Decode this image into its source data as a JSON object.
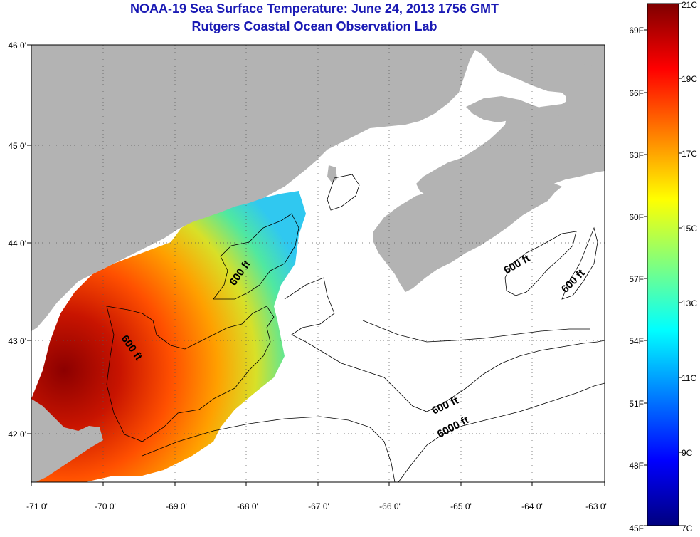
{
  "title_line1": "NOAA-19 Sea Surface Temperature:  June 24, 2013 1756 GMT",
  "title_line2": "Rutgers Coastal Ocean Observation Lab",
  "map": {
    "lat_labels": [
      "46 0'",
      "45 0'",
      "44 0'",
      "43 0'",
      "42 0'"
    ],
    "lon_labels": [
      "-71 0'",
      "-70 0'",
      "-69 0'",
      "-68 0'",
      "-67 0'",
      "-66 0'",
      "-65 0'",
      "-64 0'",
      "-63 0'"
    ],
    "contour_labels": [
      "600 ft",
      "600 ft",
      "600 ft",
      "600 ft",
      "600 ft",
      "6000 ft"
    ],
    "land_color": "#b3b3b3",
    "water_color": "#ffffff"
  },
  "colorbar": {
    "celsius_labels": [
      "21C",
      "19C",
      "17C",
      "15C",
      "13C",
      "11C",
      "9C",
      "7C"
    ],
    "fahrenheit_labels": [
      "69F",
      "66F",
      "63F",
      "60F",
      "57F",
      "54F",
      "51F",
      "48F",
      "45F"
    ],
    "colors": [
      "#00007f",
      "#0000ff",
      "#007fff",
      "#00ffff",
      "#7fff7f",
      "#ffff00",
      "#ff7f00",
      "#ff0000",
      "#7f0000"
    ]
  }
}
